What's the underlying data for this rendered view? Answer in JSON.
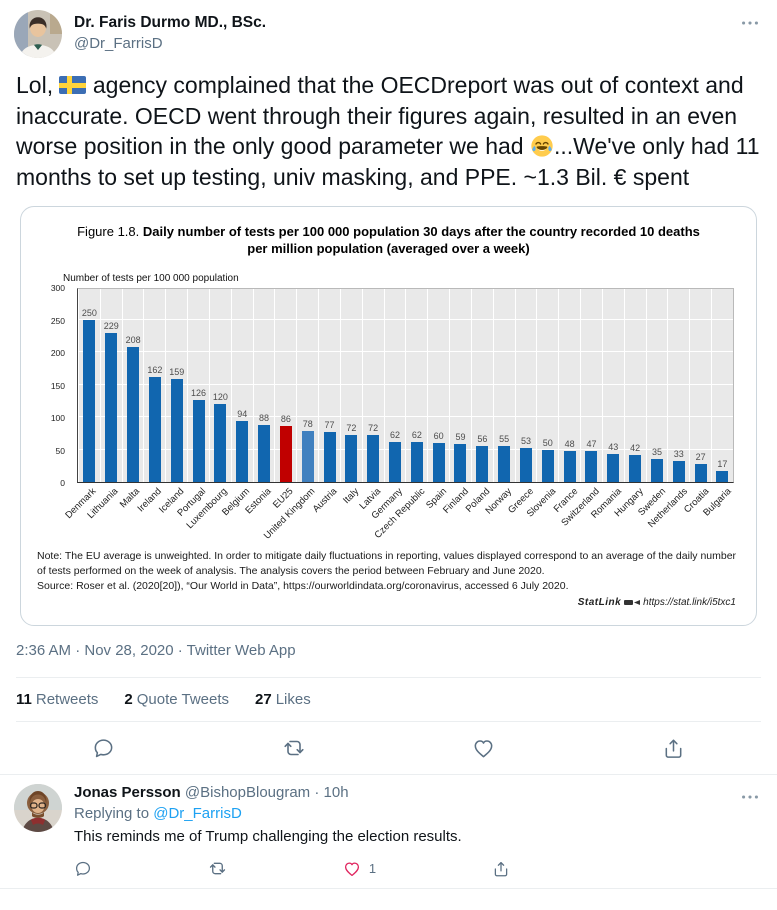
{
  "tweet": {
    "author": "Dr. Faris Durmo MD., BSc.",
    "handle": "@Dr_FarrisD",
    "text_part1": "Lol, ",
    "text_part2": " agency complained that the OECDreport was out of context and inaccurate. OECD went through their figures again, resulted in an even worse position in the only good parameter we had ",
    "text_part3": "...We've only had 11 months to set up testing, univ masking, and PPE. ~1.3 Bil. € spent",
    "timestamp": "2:36 AM · Nov 28, 2020 · Twitter Web App",
    "stats": [
      {
        "count": "11",
        "label": "Retweets"
      },
      {
        "count": "2",
        "label": "Quote Tweets"
      },
      {
        "count": "27",
        "label": "Likes"
      }
    ]
  },
  "chart_data": {
    "type": "bar",
    "title_prefix": "Figure 1.8. ",
    "title_bold": "Daily number of tests per 100 000 population 30 days after the country recorded 10 deaths per million population (averaged over a week)",
    "ylabel": "Number of tests per 100 000 population",
    "ylim": [
      0,
      300
    ],
    "yticks": [
      0,
      50,
      100,
      150,
      200,
      250,
      300
    ],
    "grid": true,
    "categories": [
      "Denmark",
      "Lithuania",
      "Malta",
      "Ireland",
      "Iceland",
      "Portugal",
      "Luxembourg",
      "Belgium",
      "Estonia",
      "EU25",
      "United Kingdom",
      "Austria",
      "Italy",
      "Latvia",
      "Germany",
      "Czech Republic",
      "Spain",
      "Finland",
      "Poland",
      "Norway",
      "Greece",
      "Slovenia",
      "France",
      "Switzerland",
      "Romania",
      "Hungary",
      "Sweden",
      "Netherlands",
      "Croatia",
      "Bulgaria"
    ],
    "values": [
      250,
      229,
      208,
      162,
      159,
      126,
      120,
      94,
      88,
      86,
      78,
      77,
      72,
      72,
      62,
      62,
      60,
      59,
      56,
      55,
      53,
      50,
      48,
      47,
      43,
      42,
      35,
      33,
      27,
      17
    ],
    "colors": {
      "default": "#1166af",
      "byIndex": {
        "9": "#c00000",
        "10": "#4080bf"
      }
    },
    "note": "Note: The EU average is unweighted. In order to mitigate daily fluctuations in reporting, values displayed correspond to an average of the daily number of tests performed on the week of analysis. The analysis covers the period between February and June 2020.",
    "source": "Source: Roser et al. (2020[20]), “Our World in Data”, https://ourworldindata.org/coronavirus, accessed 6 July 2020.",
    "statlink_label": "StatLink",
    "statlink_url": "https://stat.link/i5txc1"
  },
  "reply": {
    "author": "Jonas Persson",
    "handle_time": "@BishopBlougram · 10h",
    "replying_prefix": "Replying to ",
    "replying_to": "@Dr_FarrisD",
    "text": "This reminds me of Trump challenging the election results.",
    "like_count": "1"
  }
}
